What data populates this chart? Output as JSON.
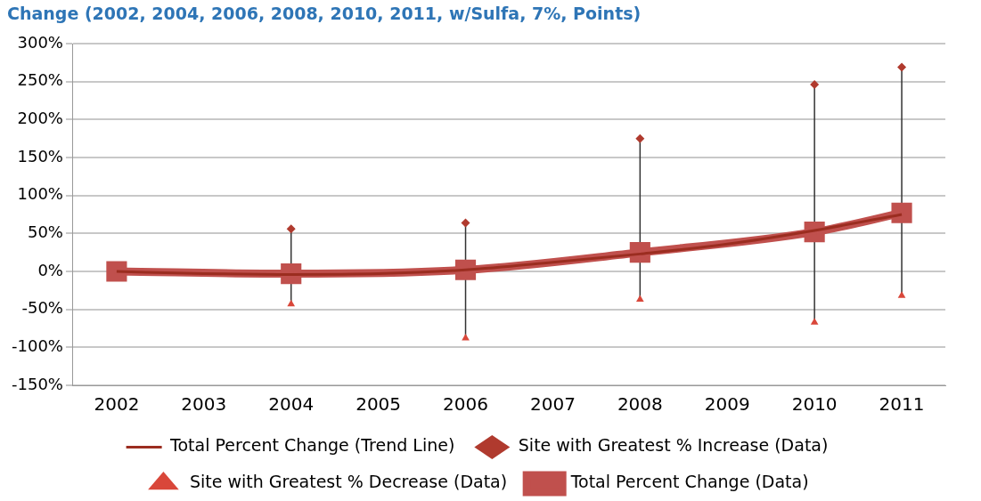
{
  "chart_data": {
    "type": "line",
    "title": "Change (2002, 2004, 2006, 2008, 2010, 2011, w/Sulfa, 7%, Points)",
    "categories": [
      "2002",
      "2003",
      "2004",
      "2005",
      "2006",
      "2007",
      "2008",
      "2009",
      "2010",
      "2011"
    ],
    "ylim": [
      -150,
      300
    ],
    "yticks": [
      {
        "value": -150,
        "label": "-150%"
      },
      {
        "value": -100,
        "label": "-100%"
      },
      {
        "value": -50,
        "label": "-50%"
      },
      {
        "value": 0,
        "label": "0%"
      },
      {
        "value": 50,
        "label": "50%"
      },
      {
        "value": 100,
        "label": "100%"
      },
      {
        "value": 150,
        "label": "150%"
      },
      {
        "value": 200,
        "label": "200%"
      },
      {
        "value": 250,
        "label": "250%"
      },
      {
        "value": 300,
        "label": "300%"
      }
    ],
    "grid": "y",
    "legend": "bottom",
    "series": [
      {
        "name": "Site with Greatest % Increase (Data)",
        "type": "scatter",
        "marker": "diamond",
        "color": "#b03a2e",
        "values": [
          null,
          null,
          56,
          null,
          64,
          null,
          175,
          null,
          246,
          269
        ]
      },
      {
        "name": "Site with Greatest % Decrease (Data)",
        "type": "scatter",
        "marker": "triangle",
        "color": "#d9473a",
        "values": [
          null,
          null,
          -43,
          null,
          -88,
          null,
          -37,
          null,
          -67,
          -32
        ]
      },
      {
        "name": "Total Percent Change (Data)",
        "marker": "square",
        "color": "#c0504d",
        "values": [
          0,
          null,
          -3,
          null,
          2,
          null,
          25,
          null,
          52,
          77
        ]
      },
      {
        "name": "Total Percent Change (Trend Line)",
        "marker": "none",
        "color": "#9b2d20",
        "values": [
          0,
          -3,
          -4,
          -3,
          2,
          12,
          23,
          36,
          54,
          75
        ]
      }
    ]
  }
}
